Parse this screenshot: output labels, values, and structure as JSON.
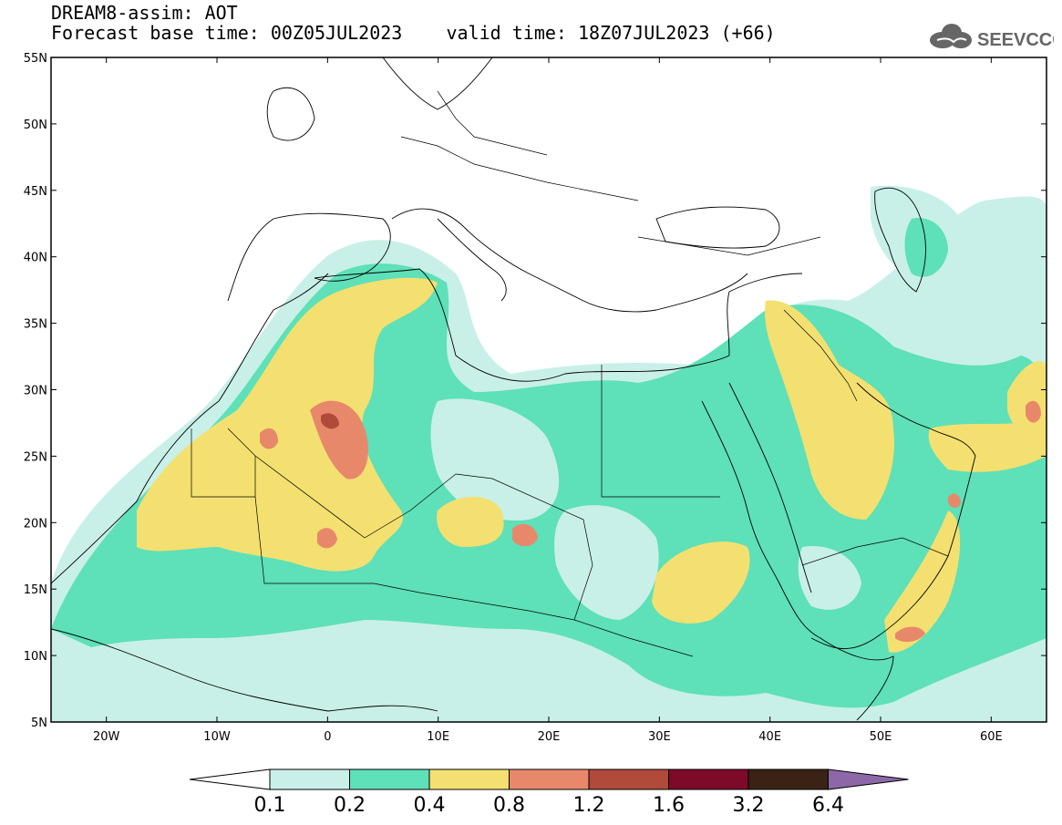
{
  "header": {
    "title": "DREAM8-assim: AOT",
    "base_time_label": "Forecast base time: 00Z05JUL2023",
    "valid_time_label": "valid time: 18Z07JUL2023 (+66)"
  },
  "logo": {
    "text": "SEEVCCC",
    "icon": "cloud-icon"
  },
  "map": {
    "lat_labels": [
      "55N",
      "50N",
      "45N",
      "40N",
      "35N",
      "30N",
      "25N",
      "20N",
      "15N",
      "10N",
      "5N"
    ],
    "lon_labels": [
      "20W",
      "10W",
      "0",
      "10E",
      "20E",
      "30E",
      "40E",
      "50E",
      "60E"
    ]
  },
  "colorbar": {
    "colors": [
      "#c8f0e8",
      "#5ee0b8",
      "#f4e070",
      "#e8886a",
      "#b04a3a",
      "#7e0a2a",
      "#3a2214",
      "#8c68a8"
    ],
    "labels": [
      "0.1",
      "0.2",
      "0.4",
      "0.8",
      "1.2",
      "1.6",
      "3.2",
      "6.4"
    ]
  }
}
